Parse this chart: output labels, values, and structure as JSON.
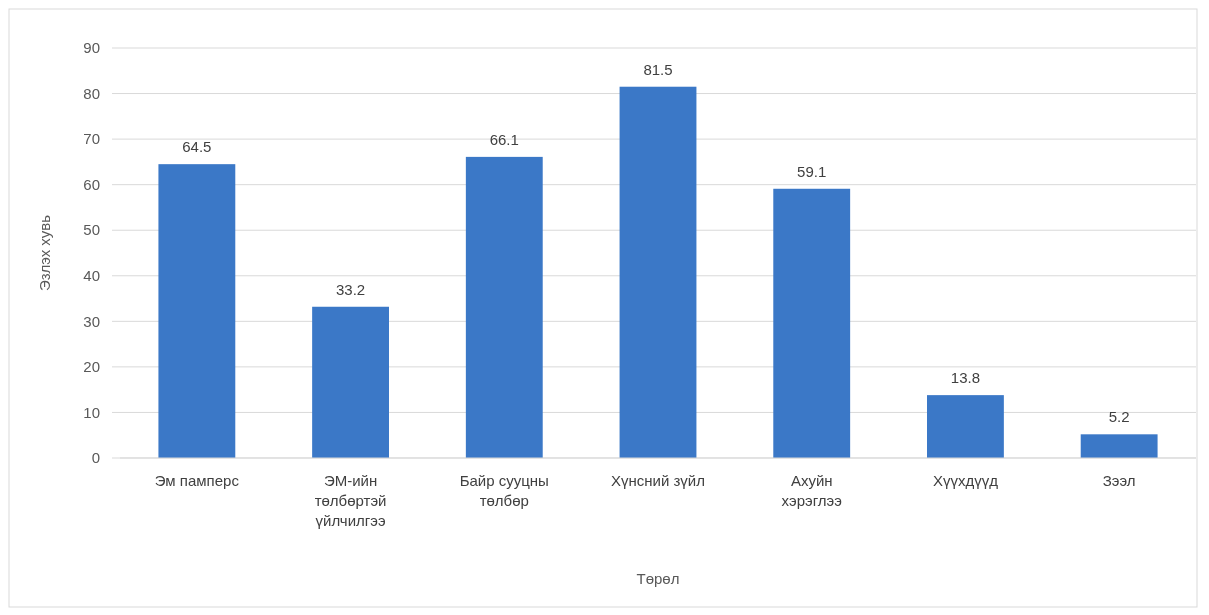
{
  "chart_data": {
    "type": "bar",
    "xlabel": "Төрөл",
    "ylabel": "Эзлэх хувь",
    "categories": [
      "Эм памперс",
      "ЭМ-ийн төлбөртэй үйлчилгээ",
      "Байр сууцны төлбөр",
      "Хүнсний зүйл",
      "Ахуйн хэрэглээ",
      "Хүүхдүүд",
      "Зээл"
    ],
    "values": [
      64.5,
      33.2,
      66.1,
      81.5,
      59.1,
      13.8,
      5.2
    ],
    "color": "#3b78c7",
    "ylim": [
      0,
      90
    ],
    "yticks": [
      0,
      10,
      20,
      30,
      40,
      50,
      60,
      70,
      80,
      90
    ],
    "grid": "y",
    "data_labels": true
  }
}
